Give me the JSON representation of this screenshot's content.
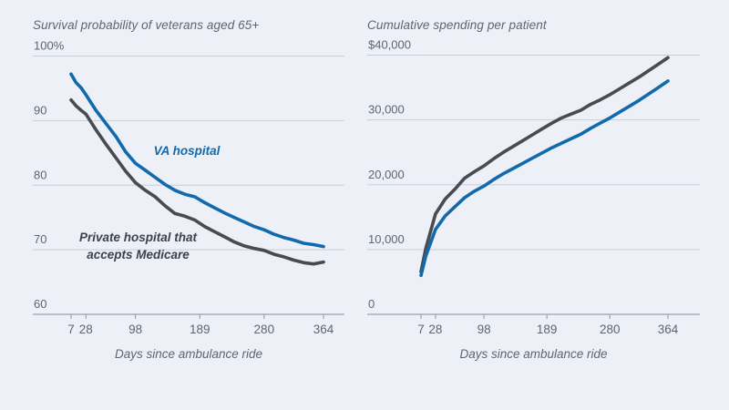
{
  "page": {
    "background": "#edf1f7"
  },
  "colors": {
    "va_blue": "#1269ac",
    "private_dark": "#474c52",
    "private_label": "#3c4249",
    "grid": "#c9ced5",
    "axis": "#9aa4ae",
    "text": "#5c6670"
  },
  "chart_data": [
    {
      "type": "line",
      "title": "Survival probability of veterans aged 65+",
      "xlabel": "Days since ambulance ride",
      "grid": "horizontal",
      "x_axis": {
        "min": 7,
        "max": 364,
        "ticks": [
          7,
          28,
          98,
          189,
          280,
          364
        ],
        "tick_labels": [
          "7",
          "28",
          "98",
          "189",
          "280",
          "364"
        ]
      },
      "y_axis": {
        "min": 60,
        "max": 100,
        "ticks": [
          100,
          90,
          80,
          70,
          60
        ],
        "tick_labels": [
          "100%",
          "90",
          "80",
          "70",
          "60"
        ]
      },
      "series": [
        {
          "name": "VA hospital",
          "key": "va-hospital",
          "color": "#1269ac",
          "points": [
            [
              7,
              97.2
            ],
            [
              14,
              95.9
            ],
            [
              21,
              95.1
            ],
            [
              28,
              94.0
            ],
            [
              42,
              91.6
            ],
            [
              56,
              89.6
            ],
            [
              70,
              87.6
            ],
            [
              84,
              85.2
            ],
            [
              98,
              83.4
            ],
            [
              112,
              82.3
            ],
            [
              126,
              81.2
            ],
            [
              140,
              80.1
            ],
            [
              154,
              79.2
            ],
            [
              168,
              78.6
            ],
            [
              182,
              78.2
            ],
            [
              196,
              77.3
            ],
            [
              210,
              76.5
            ],
            [
              224,
              75.7
            ],
            [
              238,
              75.0
            ],
            [
              252,
              74.3
            ],
            [
              266,
              73.6
            ],
            [
              280,
              73.1
            ],
            [
              294,
              72.4
            ],
            [
              308,
              71.9
            ],
            [
              322,
              71.5
            ],
            [
              336,
              71.0
            ],
            [
              350,
              70.8
            ],
            [
              364,
              70.5
            ]
          ]
        },
        {
          "name": "Private hospital that accepts Medicare",
          "key": "private-hospital",
          "color": "#474c52",
          "points": [
            [
              7,
              93.2
            ],
            [
              14,
              92.3
            ],
            [
              21,
              91.6
            ],
            [
              28,
              91.0
            ],
            [
              42,
              88.6
            ],
            [
              56,
              86.4
            ],
            [
              70,
              84.3
            ],
            [
              84,
              82.2
            ],
            [
              98,
              80.4
            ],
            [
              112,
              79.2
            ],
            [
              126,
              78.2
            ],
            [
              140,
              76.8
            ],
            [
              154,
              75.6
            ],
            [
              168,
              75.2
            ],
            [
              182,
              74.6
            ],
            [
              196,
              73.6
            ],
            [
              210,
              72.8
            ],
            [
              224,
              72.0
            ],
            [
              238,
              71.2
            ],
            [
              252,
              70.6
            ],
            [
              266,
              70.2
            ],
            [
              280,
              69.9
            ],
            [
              294,
              69.3
            ],
            [
              308,
              68.9
            ],
            [
              322,
              68.4
            ],
            [
              336,
              68.0
            ],
            [
              350,
              67.8
            ],
            [
              364,
              68.1
            ]
          ]
        }
      ],
      "annotations": [
        {
          "text": "VA hospital",
          "color": "#1269ac"
        },
        {
          "text": "Private hospital that\naccepts Medicare",
          "color": "#3c4249"
        }
      ]
    },
    {
      "type": "line",
      "title": "Cumulative spending per patient",
      "xlabel": "Days since ambulance ride",
      "grid": "horizontal",
      "x_axis": {
        "min": 7,
        "max": 364,
        "ticks": [
          7,
          28,
          98,
          189,
          280,
          364
        ],
        "tick_labels": [
          "7",
          "28",
          "98",
          "189",
          "280",
          "364"
        ]
      },
      "y_axis": {
        "min": 0,
        "max": 40000,
        "ticks": [
          40000,
          30000,
          20000,
          10000,
          0
        ],
        "tick_labels": [
          "$40,000",
          "30,000",
          "20,000",
          "10,000",
          "0"
        ]
      },
      "series": [
        {
          "name": "Private hospital that accepts Medicare",
          "key": "private-hospital",
          "color": "#474c52",
          "points": [
            [
              7,
              6600
            ],
            [
              14,
              10200
            ],
            [
              28,
              15500
            ],
            [
              42,
              17800
            ],
            [
              56,
              19300
            ],
            [
              70,
              21000
            ],
            [
              84,
              22000
            ],
            [
              98,
              22900
            ],
            [
              112,
              24000
            ],
            [
              126,
              25000
            ],
            [
              140,
              25900
            ],
            [
              154,
              26800
            ],
            [
              168,
              27700
            ],
            [
              182,
              28600
            ],
            [
              196,
              29500
            ],
            [
              210,
              30300
            ],
            [
              224,
              30900
            ],
            [
              238,
              31500
            ],
            [
              252,
              32400
            ],
            [
              266,
              33100
            ],
            [
              280,
              33900
            ],
            [
              294,
              34800
            ],
            [
              308,
              35700
            ],
            [
              322,
              36600
            ],
            [
              336,
              37600
            ],
            [
              350,
              38600
            ],
            [
              364,
              39600
            ]
          ]
        },
        {
          "name": "VA hospital",
          "key": "va-hospital",
          "color": "#1269ac",
          "points": [
            [
              7,
              6000
            ],
            [
              14,
              9000
            ],
            [
              28,
              13100
            ],
            [
              42,
              15200
            ],
            [
              56,
              16600
            ],
            [
              70,
              18000
            ],
            [
              84,
              19000
            ],
            [
              98,
              19800
            ],
            [
              112,
              20800
            ],
            [
              126,
              21700
            ],
            [
              140,
              22500
            ],
            [
              154,
              23300
            ],
            [
              168,
              24100
            ],
            [
              182,
              24900
            ],
            [
              196,
              25700
            ],
            [
              210,
              26400
            ],
            [
              224,
              27100
            ],
            [
              238,
              27800
            ],
            [
              252,
              28700
            ],
            [
              266,
              29500
            ],
            [
              280,
              30300
            ],
            [
              294,
              31200
            ],
            [
              308,
              32100
            ],
            [
              322,
              33000
            ],
            [
              336,
              34000
            ],
            [
              350,
              35000
            ],
            [
              364,
              36000
            ]
          ]
        }
      ],
      "annotations": []
    }
  ]
}
